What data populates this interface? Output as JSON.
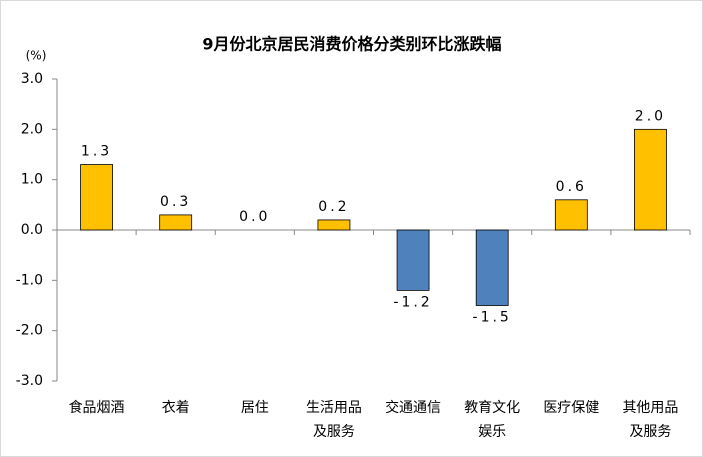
{
  "chart_data": {
    "type": "bar",
    "title": "9月份北京居民消费价格分类别环比涨跌幅",
    "y_unit": "(%)",
    "categories": [
      "食品烟酒",
      "衣着",
      "居住",
      "生活用品\n及服务",
      "交通通信",
      "教育文化\n娱乐",
      "医疗保健",
      "其他用品\n及服务"
    ],
    "values": [
      1.3,
      0.3,
      0.0,
      0.2,
      -1.2,
      -1.5,
      0.6,
      2.0
    ],
    "value_labels": [
      "1.3",
      "0.3",
      "0.0",
      "0.2",
      "-1.2",
      "-1.5",
      "0.6",
      "2.0"
    ],
    "color": "#ffc000",
    "negative_color": "#4f81bd",
    "ylim": [
      -3,
      3
    ],
    "yticks": [
      {
        "value": -3,
        "label": "-3.0"
      },
      {
        "value": -2,
        "label": "-2.0"
      },
      {
        "value": -1,
        "label": "-1.0"
      },
      {
        "value": 0,
        "label": "0.0"
      },
      {
        "value": 1,
        "label": "1.0"
      },
      {
        "value": 2,
        "label": "2.0"
      },
      {
        "value": 3,
        "label": "3.0"
      }
    ],
    "grid": false
  }
}
